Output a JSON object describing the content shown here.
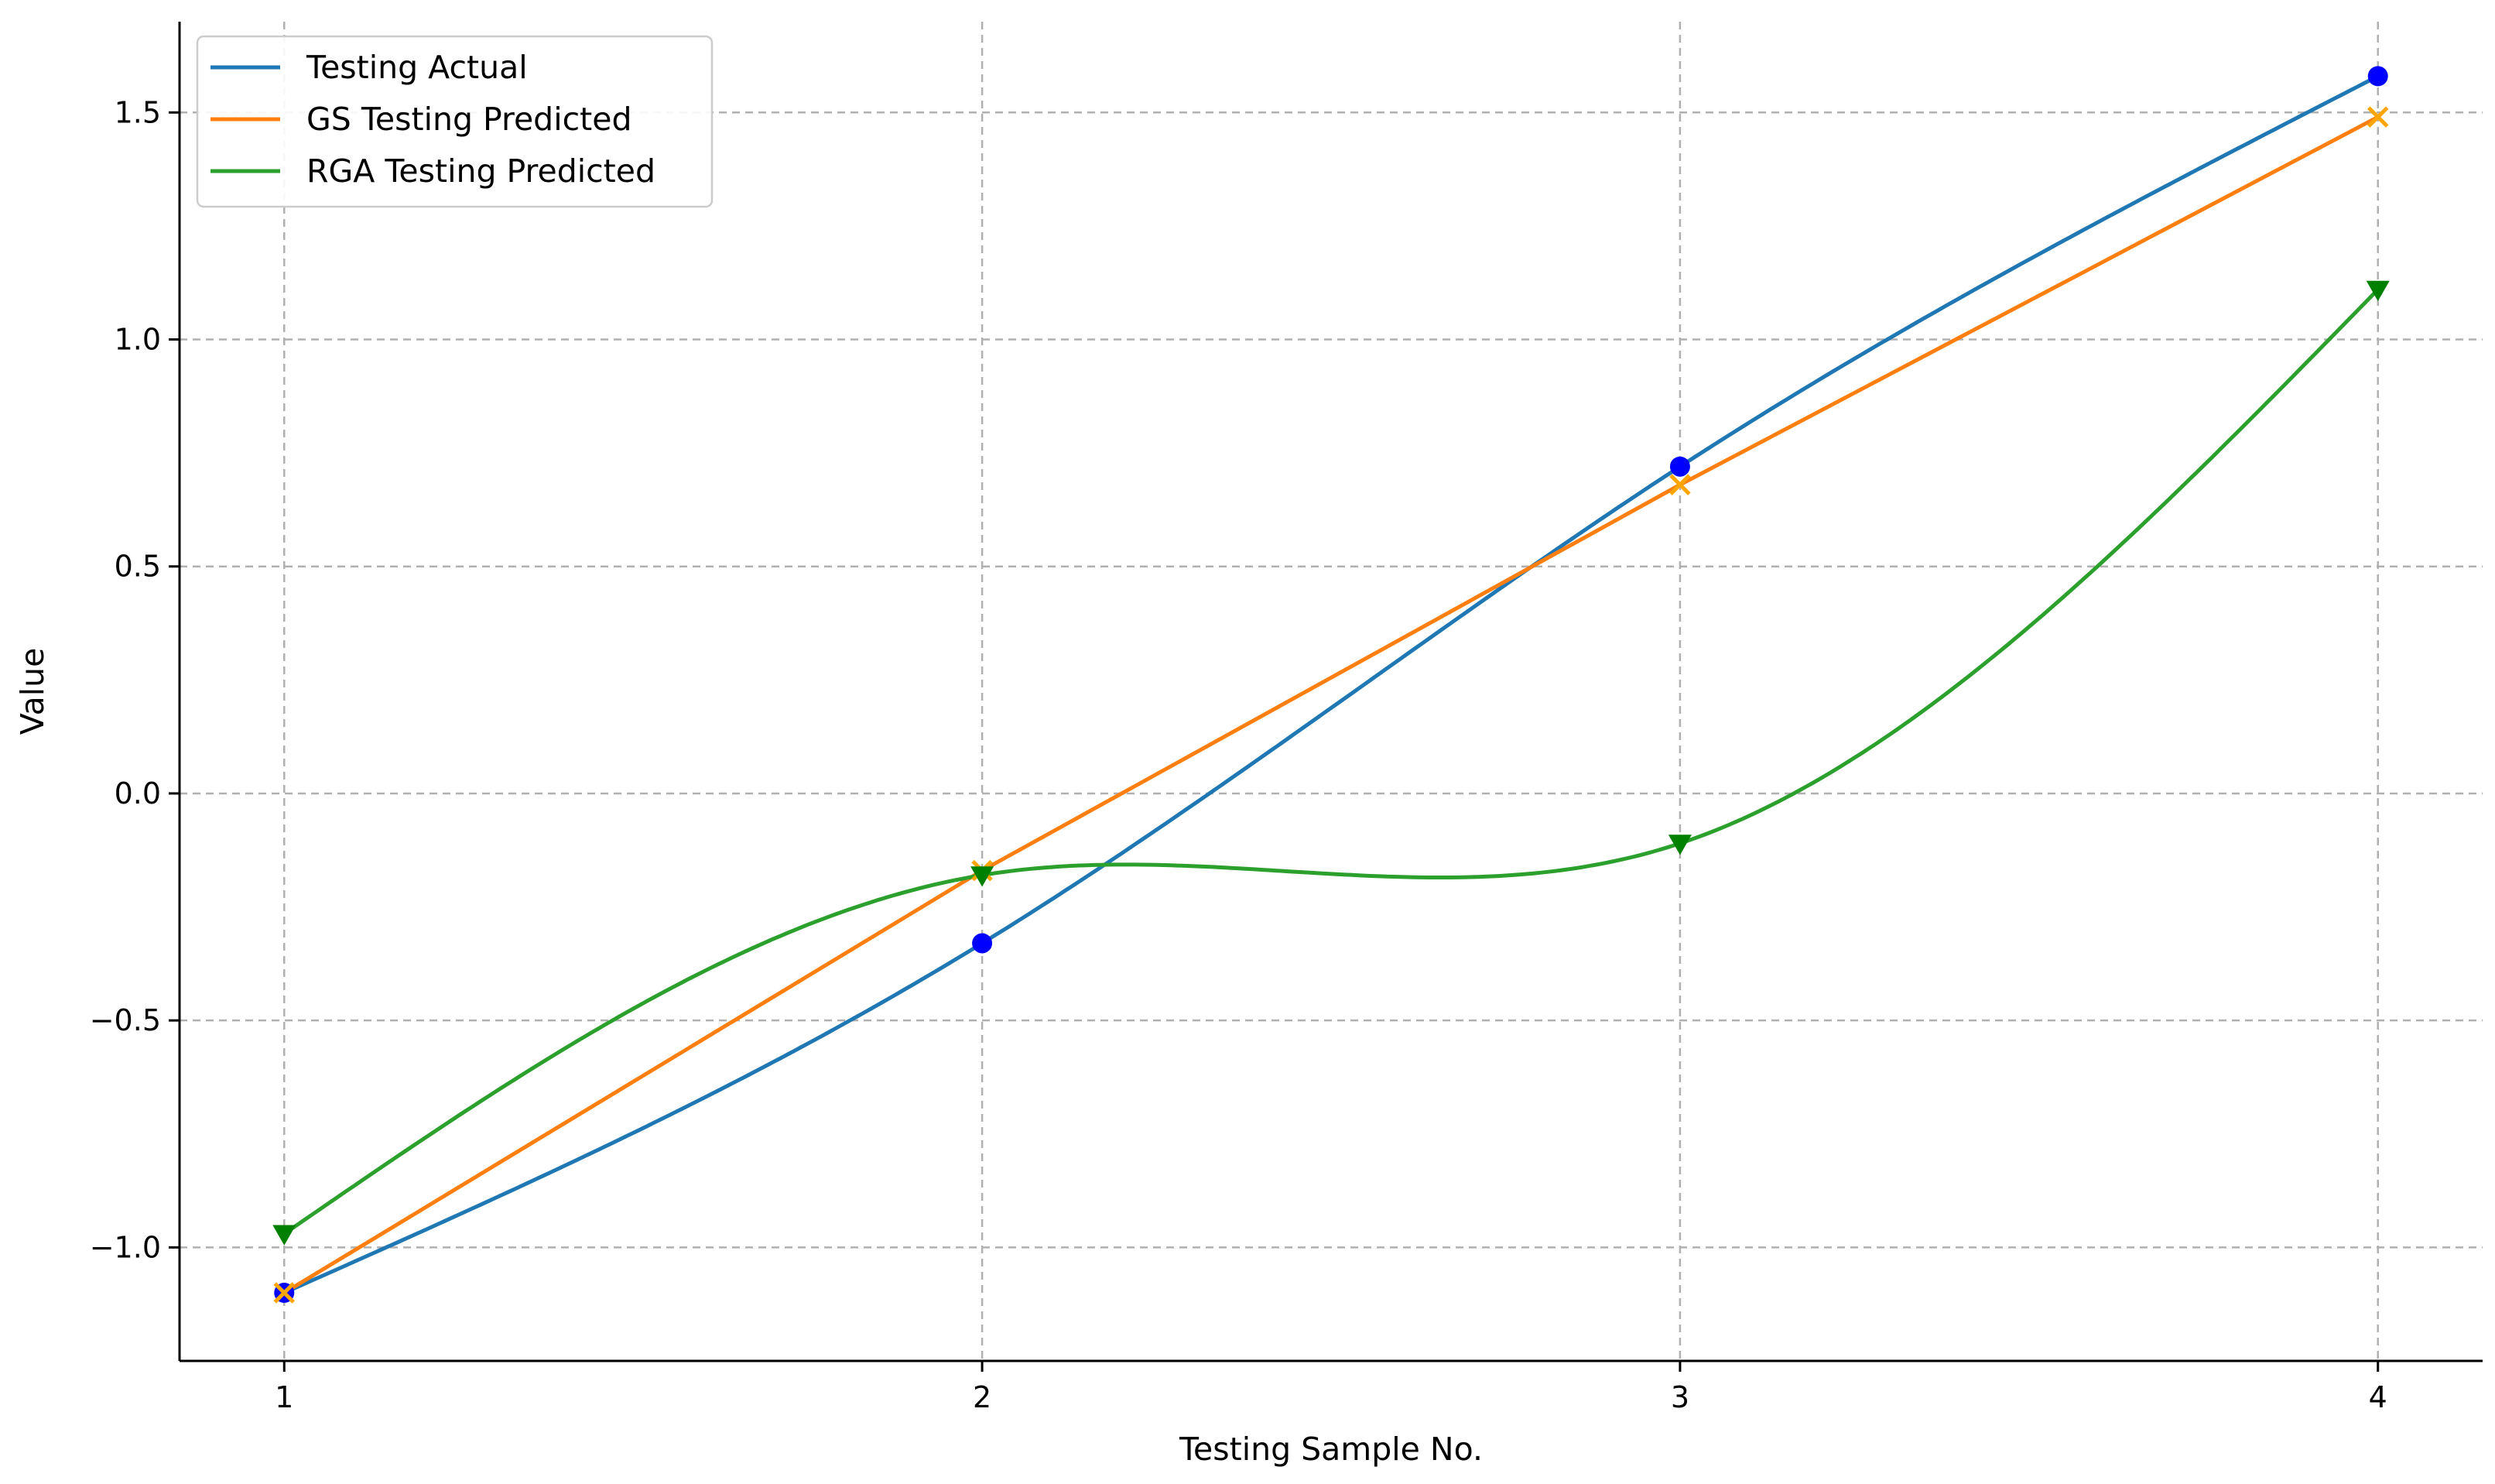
{
  "chart_data": {
    "type": "line",
    "title": "",
    "xlabel": "Testing Sample No.",
    "ylabel": "Value",
    "x": [
      1,
      2,
      3,
      4
    ],
    "xticks": [
      1,
      2,
      3,
      4
    ],
    "xlim": [
      0.85,
      4.15
    ],
    "yticks": [
      -1.0,
      -0.5,
      0.0,
      0.5,
      1.0,
      1.5
    ],
    "ytick_labels": [
      "−1.0",
      "−0.5",
      "0.0",
      "0.5",
      "1.0",
      "1.5"
    ],
    "ylim": [
      -1.25,
      1.7
    ],
    "grid": true,
    "legend_position": "top-left",
    "series": [
      {
        "name": "Testing Actual",
        "values": [
          -1.1,
          -0.33,
          0.72,
          1.58
        ],
        "line_color": "#1f77b4",
        "marker": "circle",
        "marker_color": "#0000ff",
        "smooth": true
      },
      {
        "name": "GS Testing Predicted",
        "values": [
          -1.1,
          -0.17,
          0.68,
          1.49
        ],
        "line_color": "#ff7f0e",
        "marker": "x",
        "marker_color": "#ffa500",
        "smooth": false
      },
      {
        "name": "RGA Testing Predicted",
        "values": [
          -0.97,
          -0.18,
          -0.11,
          1.11
        ],
        "line_color": "#2ca02c",
        "marker": "triangle-down",
        "marker_color": "#008000",
        "smooth": true
      }
    ]
  }
}
